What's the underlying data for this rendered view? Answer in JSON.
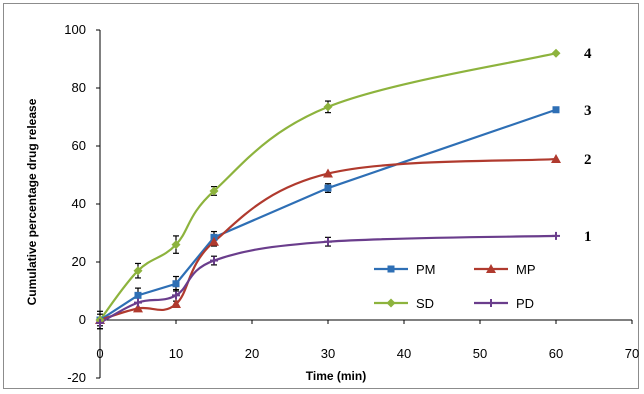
{
  "chart_data": {
    "type": "line",
    "title": "",
    "xlabel": "Time (min)",
    "ylabel": "Cumulative percentage drug release",
    "xlim": [
      0,
      70
    ],
    "ylim": [
      -20,
      100
    ],
    "xticks": [
      0,
      10,
      20,
      30,
      40,
      50,
      60,
      70
    ],
    "yticks": [
      -20,
      0,
      20,
      40,
      60,
      80,
      100
    ],
    "grid": false,
    "legend_position": "bottom-right",
    "series": [
      {
        "name": "PM",
        "color": "#2e6fb5",
        "marker": "square",
        "smooth": false,
        "x": [
          0,
          5,
          10,
          15,
          30,
          60
        ],
        "y": [
          0,
          8.5,
          12.5,
          28.5,
          45.5,
          72.5
        ],
        "err": [
          3,
          2.5,
          2.5,
          2,
          1.5,
          0
        ],
        "end_label": "3"
      },
      {
        "name": "MP",
        "color": "#b03a2e",
        "marker": "triangle",
        "smooth": true,
        "x": [
          0,
          5,
          10,
          15,
          30,
          60
        ],
        "y": [
          0,
          4,
          5.5,
          27,
          50.5,
          55.5
        ],
        "err": [
          0,
          0,
          0,
          1.5,
          0,
          0
        ],
        "end_label": "2"
      },
      {
        "name": "SD",
        "color": "#8db33d",
        "marker": "diamond",
        "smooth": true,
        "x": [
          0,
          5,
          10,
          15,
          30,
          60
        ],
        "y": [
          0,
          17,
          26,
          44.5,
          73.5,
          92
        ],
        "err": [
          2,
          2.5,
          3,
          1.5,
          2,
          0
        ],
        "end_label": "4"
      },
      {
        "name": "PD",
        "color": "#6a3d8c",
        "marker": "plus",
        "smooth": true,
        "x": [
          0,
          5,
          10,
          15,
          30,
          60
        ],
        "y": [
          -1,
          6,
          8.5,
          20.5,
          27,
          29
        ],
        "err": [
          2,
          2,
          2,
          1.5,
          1.5,
          0
        ],
        "end_label": "1"
      }
    ]
  }
}
